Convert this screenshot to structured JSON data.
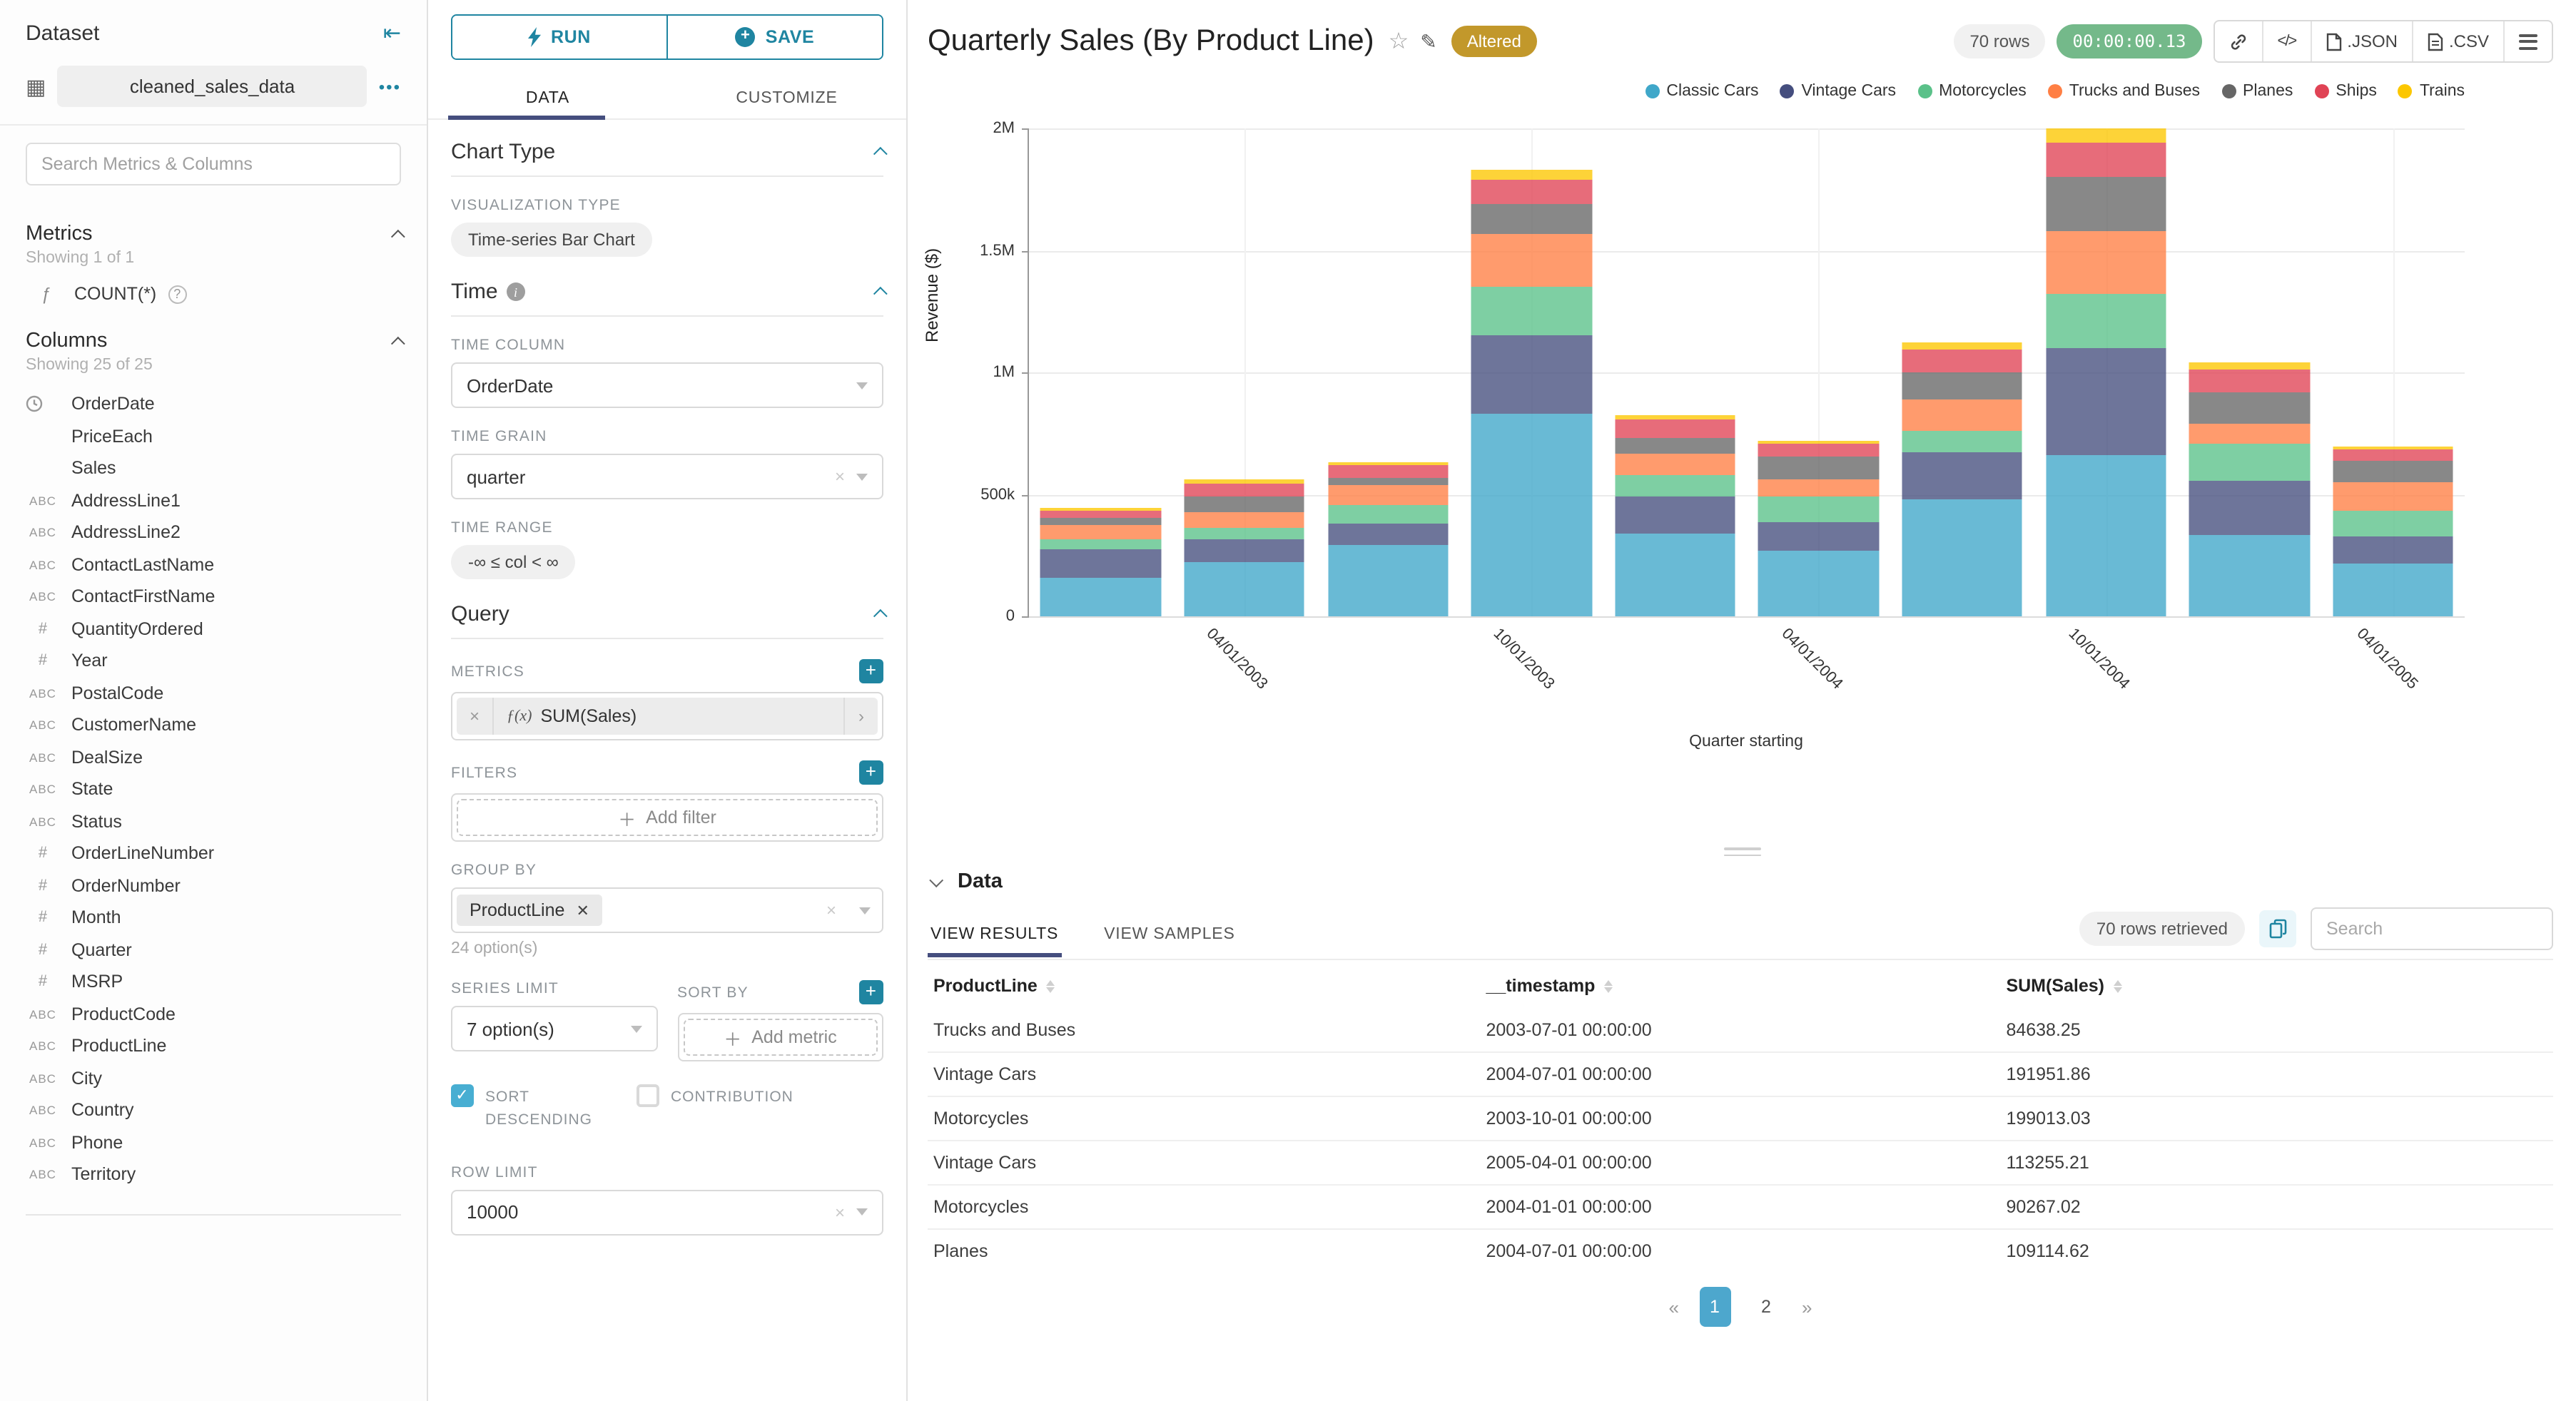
{
  "dataset_panel": {
    "title": "Dataset",
    "name": "cleaned_sales_data",
    "more_label": "•••",
    "search_placeholder": "Search Metrics & Columns",
    "metrics": {
      "title": "Metrics",
      "showing": "Showing 1 of 1",
      "items": [
        {
          "icon": "function-icon",
          "label": "COUNT(*)"
        }
      ]
    },
    "columns": {
      "title": "Columns",
      "showing": "Showing 25 of 25",
      "items": [
        {
          "type": "time",
          "label": "OrderDate"
        },
        {
          "type": "none",
          "label": "PriceEach"
        },
        {
          "type": "none",
          "label": "Sales"
        },
        {
          "type": "abc",
          "label": "AddressLine1"
        },
        {
          "type": "abc",
          "label": "AddressLine2"
        },
        {
          "type": "abc",
          "label": "ContactLastName"
        },
        {
          "type": "abc",
          "label": "ContactFirstName"
        },
        {
          "type": "num",
          "label": "QuantityOrdered"
        },
        {
          "type": "num",
          "label": "Year"
        },
        {
          "type": "abc",
          "label": "PostalCode"
        },
        {
          "type": "abc",
          "label": "CustomerName"
        },
        {
          "type": "abc",
          "label": "DealSize"
        },
        {
          "type": "abc",
          "label": "State"
        },
        {
          "type": "abc",
          "label": "Status"
        },
        {
          "type": "num",
          "label": "OrderLineNumber"
        },
        {
          "type": "num",
          "label": "OrderNumber"
        },
        {
          "type": "num",
          "label": "Month"
        },
        {
          "type": "num",
          "label": "Quarter"
        },
        {
          "type": "num",
          "label": "MSRP"
        },
        {
          "type": "abc",
          "label": "ProductCode"
        },
        {
          "type": "abc",
          "label": "ProductLine"
        },
        {
          "type": "abc",
          "label": "City"
        },
        {
          "type": "abc",
          "label": "Country"
        },
        {
          "type": "abc",
          "label": "Phone"
        },
        {
          "type": "abc",
          "label": "Territory"
        }
      ]
    }
  },
  "control_panel": {
    "run_label": "RUN",
    "save_label": "SAVE",
    "tabs": [
      "DATA",
      "CUSTOMIZE"
    ],
    "active_tab": "DATA",
    "chart_type": {
      "title": "Chart Type",
      "viz_label": "VISUALIZATION TYPE",
      "viz_value": "Time-series Bar Chart"
    },
    "time": {
      "title": "Time",
      "column_label": "TIME COLUMN",
      "column_value": "OrderDate",
      "grain_label": "TIME GRAIN",
      "grain_value": "quarter",
      "range_label": "TIME RANGE",
      "range_value": "-∞ ≤ col < ∞"
    },
    "query": {
      "title": "Query",
      "metrics_label": "METRICS",
      "metric_fn": "ƒ(x)",
      "metric_chip": "SUM(Sales)",
      "filters_label": "FILTERS",
      "add_filter_label": "Add filter",
      "group_by_label": "GROUP BY",
      "group_by_chip": "ProductLine",
      "group_by_note": "24 option(s)",
      "series_limit_label": "SERIES LIMIT",
      "series_limit_value": "7 option(s)",
      "sort_by_label": "SORT BY",
      "add_metric_label": "Add metric",
      "sort_descending_label": "SORT DESCENDING",
      "sort_descending_checked": true,
      "contribution_label": "CONTRIBUTION",
      "contribution_checked": false,
      "row_limit_label": "ROW LIMIT",
      "row_limit_value": "10000"
    }
  },
  "header": {
    "title": "Quarterly Sales (By Product Line)",
    "badge": "Altered",
    "rows_pill": "70 rows",
    "timer": "00:00:00.13",
    "export_json_label": ".JSON",
    "export_csv_label": ".CSV"
  },
  "chart_data": {
    "type": "bar",
    "stacked": true,
    "title": "Quarterly Sales (By Product Line)",
    "xlabel": "Quarter starting",
    "ylabel": "Revenue ($)",
    "ylim": [
      0,
      2000000
    ],
    "grid": true,
    "legend_position": "top-right",
    "yticks": [
      {
        "value": 0,
        "label": "0"
      },
      {
        "value": 500000,
        "label": "500k"
      },
      {
        "value": 1000000,
        "label": "1M"
      },
      {
        "value": 1500000,
        "label": "1.5M"
      },
      {
        "value": 2000000,
        "label": "2M"
      }
    ],
    "x": [
      "2003-01-01",
      "2003-04-01",
      "2003-07-01",
      "2003-10-01",
      "2004-01-01",
      "2004-04-01",
      "2004-07-01",
      "2004-10-01",
      "2005-01-01",
      "2005-04-01"
    ],
    "x_tick_labels": [
      {
        "index": 1,
        "label": "04/01/2003"
      },
      {
        "index": 3,
        "label": "10/01/2003"
      },
      {
        "index": 5,
        "label": "04/01/2004"
      },
      {
        "index": 7,
        "label": "10/01/2004"
      },
      {
        "index": 9,
        "label": "04/01/2005"
      }
    ],
    "series": [
      {
        "name": "Classic Cars",
        "color": "#3FA7C9",
        "values": [
          160000,
          225000,
          290000,
          830000,
          340000,
          270000,
          480000,
          660000,
          335000,
          215000
        ]
      },
      {
        "name": "Vintage Cars",
        "color": "#454E7E",
        "values": [
          115000,
          90000,
          90000,
          320000,
          150000,
          115000,
          191951.86,
          440000,
          223000,
          113255.21
        ]
      },
      {
        "name": "Motorcycles",
        "color": "#5AC189",
        "values": [
          40000,
          45000,
          75000,
          199013.03,
          90267.02,
          105000,
          90000,
          220000,
          148000,
          104000
        ]
      },
      {
        "name": "Trucks and Buses",
        "color": "#FF7F44",
        "values": [
          60000,
          70000,
          84638.25,
          220000,
          85000,
          70000,
          130000,
          260000,
          84000,
          118000
        ]
      },
      {
        "name": "Planes",
        "color": "#666666",
        "values": [
          30000,
          60000,
          30000,
          120000,
          65000,
          95000,
          109114.62,
          220000,
          131000,
          90000
        ]
      },
      {
        "name": "Ships",
        "color": "#E04355",
        "values": [
          28000,
          55000,
          50000,
          100000,
          75000,
          50000,
          90000,
          140000,
          89000,
          45000
        ]
      },
      {
        "name": "Trains",
        "color": "#FCC700",
        "values": [
          10000,
          15000,
          15000,
          40000,
          20000,
          15000,
          30000,
          60000,
          30000,
          10000
        ]
      }
    ]
  },
  "data_panel": {
    "title": "Data",
    "tabs": [
      "VIEW RESULTS",
      "VIEW SAMPLES"
    ],
    "active_tab": "VIEW RESULTS",
    "rows_retrieved": "70 rows retrieved",
    "search_placeholder": "Search",
    "table": {
      "columns": [
        "ProductLine",
        "__timestamp",
        "SUM(Sales)"
      ],
      "rows": [
        [
          "Trucks and Buses",
          "2003-07-01 00:00:00",
          "84638.25"
        ],
        [
          "Vintage Cars",
          "2004-07-01 00:00:00",
          "191951.86"
        ],
        [
          "Motorcycles",
          "2003-10-01 00:00:00",
          "199013.03"
        ],
        [
          "Vintage Cars",
          "2005-04-01 00:00:00",
          "113255.21"
        ],
        [
          "Motorcycles",
          "2004-01-01 00:00:00",
          "90267.02"
        ],
        [
          "Planes",
          "2004-07-01 00:00:00",
          "109114.62"
        ]
      ]
    },
    "pagination": {
      "prev": "«",
      "pages": [
        "1",
        "2"
      ],
      "active": "1",
      "next": "»"
    }
  },
  "colors": {
    "accent": "#1f85a1",
    "tab_active_underline": "#454e7e",
    "altered_badge": "#c2982b",
    "timer_green": "#74b98a",
    "pagination_active": "#4da7cd",
    "checkbox_checked": "#48aed2"
  }
}
